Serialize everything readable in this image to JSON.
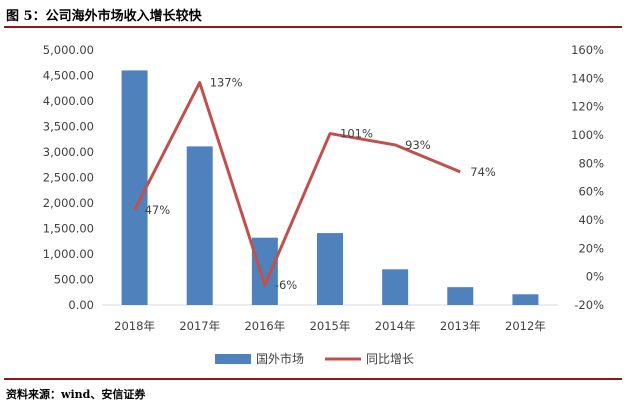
{
  "figure_title": "图 5：公司海外市场收入增长较快",
  "source_note": "资料来源：wind、安信证券",
  "chart_data": {
    "type": "bar+line",
    "title": "",
    "categories": [
      "2018年",
      "2017年",
      "2016年",
      "2015年",
      "2014年",
      "2013年",
      "2012年"
    ],
    "series": [
      {
        "name": "国外市场",
        "type": "bar",
        "axis": "left",
        "color": "#4f81bd",
        "values": [
          4600,
          3110,
          1320,
          1410,
          700,
          350,
          210
        ]
      },
      {
        "name": "同比增长",
        "type": "line",
        "axis": "right",
        "color": "#c0504d",
        "values": [
          47,
          137,
          -6,
          101,
          93,
          74,
          null
        ],
        "data_labels": [
          "47%",
          "137%",
          "-6%",
          "101%",
          "93%",
          "74%",
          ""
        ]
      }
    ],
    "y_left": {
      "min": 0,
      "max": 5000,
      "step": 500,
      "tick_labels": [
        "0.00",
        "500.00",
        "1,000.00",
        "1,500.00",
        "2,000.00",
        "2,500.00",
        "3,000.00",
        "3,500.00",
        "4,000.00",
        "4,500.00",
        "5,000.00"
      ]
    },
    "y_right": {
      "min": -20,
      "max": 160,
      "step": 20,
      "tick_labels": [
        "-20%",
        "0%",
        "20%",
        "40%",
        "60%",
        "80%",
        "100%",
        "120%",
        "140%",
        "160%"
      ]
    },
    "grid": false,
    "legend_position": "bottom"
  }
}
